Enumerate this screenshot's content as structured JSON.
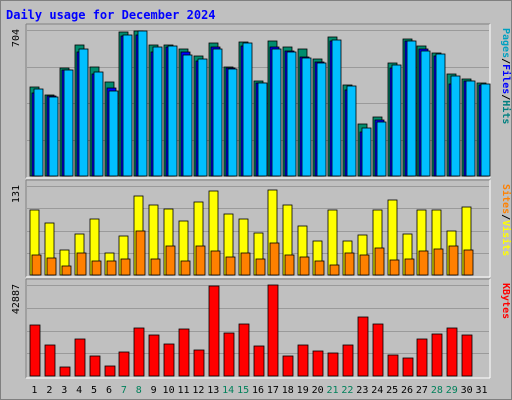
{
  "chart_data": {
    "type": "bar",
    "title": "Daily usage for December 2024",
    "categories": [
      "1",
      "2",
      "3",
      "4",
      "5",
      "6",
      "7",
      "8",
      "9",
      "10",
      "11",
      "12",
      "13",
      "14",
      "15",
      "16",
      "17",
      "18",
      "19",
      "20",
      "21",
      "22",
      "23",
      "24",
      "25",
      "26",
      "27",
      "28",
      "29",
      "30",
      "31"
    ],
    "weekend_days": [
      "7",
      "8",
      "14",
      "15",
      "21",
      "22",
      "28",
      "29"
    ],
    "panels": [
      {
        "id": "hits",
        "y_max_label": "704",
        "ylim": [
          0,
          704
        ],
        "axis_labels": [
          {
            "text": "Pages",
            "color": "#00a0c0"
          },
          {
            "text": "/",
            "color": "#000000"
          },
          {
            "text": "Files",
            "color": "#0000ff"
          },
          {
            "text": "/",
            "color": "#000000"
          },
          {
            "text": "Hits",
            "color": "#008080"
          }
        ],
        "series": [
          {
            "name": "Hits",
            "color": "#008c6e",
            "values": [
              430,
              390,
              520,
              630,
              525,
              455,
              695,
              700,
              630,
              630,
              610,
              580,
              640,
              525,
              645,
              460,
              650,
              620,
              610,
              565,
              670,
              440,
              250,
              285,
              545,
              660,
              625,
              595,
              490,
              470,
              450
            ]
          },
          {
            "name": "Files",
            "color": "#0000ff",
            "values": [
              400,
              385,
              510,
              600,
              490,
              425,
              675,
              680,
              600,
              620,
              600,
              555,
              620,
              520,
              625,
              450,
              620,
              605,
              575,
              550,
              650,
              415,
              210,
              270,
              520,
              650,
              610,
              580,
              445,
              460,
              440
            ]
          },
          {
            "name": "Pages",
            "color": "#00bfff",
            "values": [
              420,
              380,
              510,
              610,
              500,
              410,
              680,
              700,
              620,
              625,
              585,
              565,
              610,
              515,
              640,
              450,
              610,
              600,
              570,
              545,
              655,
              435,
              230,
              260,
              535,
              650,
              605,
              590,
              480,
              460,
              445
            ]
          }
        ]
      },
      {
        "id": "visits",
        "y_max_label": "131",
        "ylim": [
          0,
          131
        ],
        "axis_labels": [
          {
            "text": "Sites",
            "color": "#ff8000"
          },
          {
            "text": "/",
            "color": "#000000"
          },
          {
            "text": "Visits",
            "color": "#ffff00"
          }
        ],
        "series": [
          {
            "name": "Visits",
            "color": "#ffff00",
            "values": [
              95,
              77,
              37,
              60,
              82,
              32,
              58,
              117,
              103,
              97,
              80,
              108,
              123,
              90,
              82,
              62,
              125,
              103,
              72,
              50,
              95,
              50,
              59,
              95,
              110,
              60,
              95,
              95,
              65,
              100,
              0
            ]
          },
          {
            "name": "Sites",
            "color": "#ff8000",
            "values": [
              30,
              25,
              13,
              32,
              20,
              20,
              23,
              65,
              23,
              42,
              21,
              42,
              36,
              26,
              33,
              24,
              47,
              30,
              27,
              20,
              15,
              33,
              30,
              40,
              22,
              23,
              35,
              38,
              43,
              37,
              0
            ]
          }
        ]
      },
      {
        "id": "kbytes",
        "y_max_label": "42887",
        "ylim": [
          0,
          42887
        ],
        "axis_labels": [
          {
            "text": "KBytes",
            "color": "#ff0000"
          }
        ],
        "series": [
          {
            "name": "KBytes",
            "color": "#ff0000",
            "values": [
              23800,
              14500,
              4200,
              17400,
              9300,
              4500,
              11500,
              22700,
              19200,
              14900,
              22000,
              12400,
              42500,
              20200,
              24300,
              14300,
              42700,
              9300,
              14400,
              11900,
              10900,
              14400,
              27600,
              24300,
              9800,
              8300,
              17500,
              20000,
              22500,
              19200,
              0
            ]
          }
        ]
      }
    ],
    "grid": true
  }
}
